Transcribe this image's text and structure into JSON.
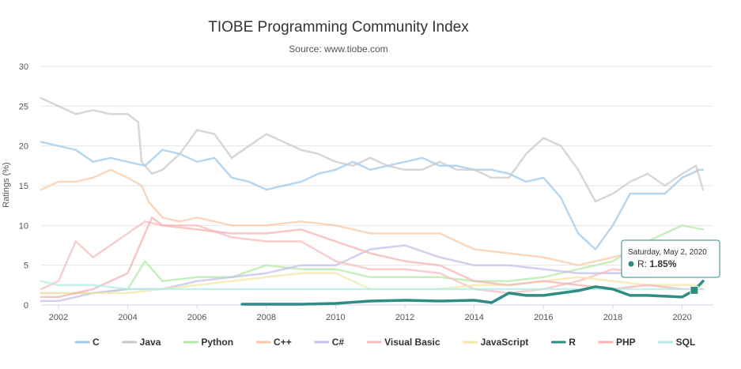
{
  "chart_data": {
    "type": "line",
    "title": "TIOBE Programming Community Index",
    "subtitle": "Source: www.tiobe.com",
    "ylabel": "Ratings (%)",
    "xlabel": "",
    "xlim": [
      2001.5,
      2020.9
    ],
    "ylim": [
      0,
      30
    ],
    "y_ticks": [
      "0",
      "5",
      "10",
      "15",
      "20",
      "25",
      "30"
    ],
    "x_ticks": [
      "2002",
      "2004",
      "2006",
      "2008",
      "2010",
      "2012",
      "2014",
      "2016",
      "2018",
      "2020"
    ],
    "grid": true,
    "legend_position": "bottom",
    "highlighted_series": "R",
    "series": [
      {
        "name": "C",
        "color": "#9ec8ec",
        "points": [
          [
            2001.5,
            20.5
          ],
          [
            2002,
            20
          ],
          [
            2002.5,
            19.5
          ],
          [
            2003,
            18
          ],
          [
            2003.5,
            18.5
          ],
          [
            2004,
            18
          ],
          [
            2004.5,
            17.5
          ],
          [
            2005,
            19.5
          ],
          [
            2005.5,
            19
          ],
          [
            2006,
            18
          ],
          [
            2006.5,
            18.5
          ],
          [
            2007,
            16
          ],
          [
            2007.5,
            15.5
          ],
          [
            2008,
            14.5
          ],
          [
            2008.5,
            15
          ],
          [
            2009,
            15.5
          ],
          [
            2009.5,
            16.5
          ],
          [
            2010,
            17
          ],
          [
            2010.5,
            18
          ],
          [
            2011,
            17
          ],
          [
            2011.5,
            17.5
          ],
          [
            2012,
            18
          ],
          [
            2012.5,
            18.5
          ],
          [
            2013,
            17.5
          ],
          [
            2013.5,
            17.5
          ],
          [
            2014,
            17
          ],
          [
            2014.5,
            17
          ],
          [
            2015,
            16.5
          ],
          [
            2015.5,
            15.5
          ],
          [
            2016,
            16
          ],
          [
            2016.5,
            13.5
          ],
          [
            2017,
            9
          ],
          [
            2017.5,
            7
          ],
          [
            2018,
            10
          ],
          [
            2018.5,
            14
          ],
          [
            2019,
            14
          ],
          [
            2019.5,
            14
          ],
          [
            2020,
            16
          ],
          [
            2020.5,
            17
          ],
          [
            2020.6,
            17
          ]
        ]
      },
      {
        "name": "Java",
        "color": "#c9c9c9",
        "points": [
          [
            2001.5,
            26
          ],
          [
            2002,
            25
          ],
          [
            2002.5,
            24
          ],
          [
            2003,
            24.5
          ],
          [
            2003.5,
            24
          ],
          [
            2004,
            24
          ],
          [
            2004.3,
            23
          ],
          [
            2004.4,
            18
          ],
          [
            2004.7,
            16.5
          ],
          [
            2005,
            17
          ],
          [
            2005.5,
            19
          ],
          [
            2006,
            22
          ],
          [
            2006.5,
            21.5
          ],
          [
            2007,
            18.5
          ],
          [
            2007.5,
            20
          ],
          [
            2008,
            21.5
          ],
          [
            2008.5,
            20.5
          ],
          [
            2009,
            19.5
          ],
          [
            2009.5,
            19
          ],
          [
            2010,
            18
          ],
          [
            2010.5,
            17.5
          ],
          [
            2011,
            18.5
          ],
          [
            2011.5,
            17.5
          ],
          [
            2012,
            17
          ],
          [
            2012.5,
            17
          ],
          [
            2013,
            18
          ],
          [
            2013.5,
            17
          ],
          [
            2014,
            17
          ],
          [
            2014.5,
            16
          ],
          [
            2015,
            16
          ],
          [
            2015.5,
            19
          ],
          [
            2016,
            21
          ],
          [
            2016.5,
            20
          ],
          [
            2017,
            17
          ],
          [
            2017.5,
            13
          ],
          [
            2018,
            14
          ],
          [
            2018.5,
            15.5
          ],
          [
            2019,
            16.5
          ],
          [
            2019.5,
            15
          ],
          [
            2020,
            16.5
          ],
          [
            2020.4,
            17.5
          ],
          [
            2020.6,
            14.5
          ]
        ]
      },
      {
        "name": "Python",
        "color": "#b4eaa8",
        "points": [
          [
            2001.5,
            1.5
          ],
          [
            2003,
            1.5
          ],
          [
            2004,
            2
          ],
          [
            2004.5,
            5.5
          ],
          [
            2005,
            3
          ],
          [
            2006,
            3.5
          ],
          [
            2007,
            3.5
          ],
          [
            2008,
            5
          ],
          [
            2009,
            4.5
          ],
          [
            2010,
            4.5
          ],
          [
            2011,
            3.5
          ],
          [
            2012,
            3.5
          ],
          [
            2013,
            3.5
          ],
          [
            2014,
            3
          ],
          [
            2015,
            3
          ],
          [
            2016,
            3.5
          ],
          [
            2017,
            4.5
          ],
          [
            2018,
            5.5
          ],
          [
            2019,
            8
          ],
          [
            2020,
            10
          ],
          [
            2020.6,
            9.5
          ]
        ]
      },
      {
        "name": "C++",
        "color": "#f9caa5",
        "points": [
          [
            2001.5,
            14.5
          ],
          [
            2002,
            15.5
          ],
          [
            2002.5,
            15.5
          ],
          [
            2003,
            16
          ],
          [
            2003.5,
            17
          ],
          [
            2004,
            16
          ],
          [
            2004.4,
            15
          ],
          [
            2004.6,
            13
          ],
          [
            2005,
            11
          ],
          [
            2005.5,
            10.5
          ],
          [
            2006,
            11
          ],
          [
            2007,
            10
          ],
          [
            2008,
            10
          ],
          [
            2009,
            10.5
          ],
          [
            2010,
            10
          ],
          [
            2011,
            9
          ],
          [
            2012,
            9
          ],
          [
            2013,
            9
          ],
          [
            2014,
            7
          ],
          [
            2015,
            6.5
          ],
          [
            2016,
            6
          ],
          [
            2017,
            5
          ],
          [
            2018,
            6
          ],
          [
            2019,
            7
          ],
          [
            2020,
            6.5
          ],
          [
            2020.6,
            6.5
          ]
        ]
      },
      {
        "name": "C#",
        "color": "#c2c2ea",
        "points": [
          [
            2001.5,
            0.5
          ],
          [
            2002,
            0.5
          ],
          [
            2003,
            1.5
          ],
          [
            2004,
            2
          ],
          [
            2005,
            2
          ],
          [
            2006,
            3
          ],
          [
            2007,
            3.5
          ],
          [
            2008,
            4
          ],
          [
            2009,
            5
          ],
          [
            2010,
            5
          ],
          [
            2011,
            7
          ],
          [
            2012,
            7.5
          ],
          [
            2013,
            6
          ],
          [
            2014,
            5
          ],
          [
            2015,
            5
          ],
          [
            2016,
            4.5
          ],
          [
            2017,
            4
          ],
          [
            2018,
            4
          ],
          [
            2019,
            4
          ],
          [
            2020,
            5
          ],
          [
            2020.6,
            5
          ]
        ]
      },
      {
        "name": "Visual Basic",
        "color": "#f7bcbc",
        "points": [
          [
            2001.5,
            2
          ],
          [
            2002,
            3
          ],
          [
            2002.5,
            8
          ],
          [
            2003,
            6
          ],
          [
            2003.5,
            7.5
          ],
          [
            2004,
            9
          ],
          [
            2004.5,
            10.5
          ],
          [
            2005,
            10
          ],
          [
            2006,
            10
          ],
          [
            2007,
            8.5
          ],
          [
            2008,
            8
          ],
          [
            2009,
            8
          ],
          [
            2010,
            5.5
          ],
          [
            2011,
            4.5
          ],
          [
            2012,
            4.5
          ],
          [
            2013,
            4
          ],
          [
            2014,
            2
          ],
          [
            2015,
            1.5
          ],
          [
            2016,
            2
          ],
          [
            2017,
            3
          ],
          [
            2018,
            4.5
          ],
          [
            2019,
            4
          ],
          [
            2020,
            5
          ],
          [
            2020.6,
            5
          ]
        ]
      },
      {
        "name": "JavaScript",
        "color": "#f3e6a8",
        "points": [
          [
            2001.5,
            1.5
          ],
          [
            2003,
            1.5
          ],
          [
            2004,
            1.5
          ],
          [
            2005,
            2
          ],
          [
            2006,
            2.5
          ],
          [
            2007,
            3
          ],
          [
            2008,
            3.5
          ],
          [
            2009,
            4
          ],
          [
            2010,
            4
          ],
          [
            2011,
            2
          ],
          [
            2012,
            2
          ],
          [
            2013,
            2
          ],
          [
            2014,
            2.5
          ],
          [
            2015,
            2.5
          ],
          [
            2016,
            3
          ],
          [
            2017,
            3.5
          ],
          [
            2018,
            3
          ],
          [
            2019,
            2.5
          ],
          [
            2020,
            2.5
          ],
          [
            2020.6,
            2.5
          ]
        ]
      },
      {
        "name": "R",
        "color": "#2f8c84",
        "points": [
          [
            2007.3,
            0.1
          ],
          [
            2008,
            0.1
          ],
          [
            2009,
            0.1
          ],
          [
            2010,
            0.2
          ],
          [
            2011,
            0.5
          ],
          [
            2012,
            0.6
          ],
          [
            2013,
            0.5
          ],
          [
            2014,
            0.6
          ],
          [
            2014.5,
            0.3
          ],
          [
            2015,
            1.5
          ],
          [
            2015.5,
            1.2
          ],
          [
            2016,
            1.2
          ],
          [
            2016.5,
            1.5
          ],
          [
            2017,
            1.8
          ],
          [
            2017.5,
            2.3
          ],
          [
            2018,
            2
          ],
          [
            2018.5,
            1.2
          ],
          [
            2019,
            1.2
          ],
          [
            2019.5,
            1.1
          ],
          [
            2020,
            1
          ],
          [
            2020.35,
            1.85
          ],
          [
            2020.6,
            3
          ]
        ]
      },
      {
        "name": "PHP",
        "color": "#f5b3b3",
        "points": [
          [
            2001.5,
            1
          ],
          [
            2002,
            1
          ],
          [
            2003,
            2
          ],
          [
            2004,
            4
          ],
          [
            2004.7,
            11
          ],
          [
            2005,
            10
          ],
          [
            2006,
            9.5
          ],
          [
            2007,
            9
          ],
          [
            2008,
            9
          ],
          [
            2009,
            9.5
          ],
          [
            2010,
            8
          ],
          [
            2011,
            6.5
          ],
          [
            2012,
            5.5
          ],
          [
            2013,
            5
          ],
          [
            2014,
            3
          ],
          [
            2015,
            2.5
          ],
          [
            2016,
            3
          ],
          [
            2017,
            2.5
          ],
          [
            2018,
            2
          ],
          [
            2019,
            2.5
          ],
          [
            2020,
            2
          ],
          [
            2020.6,
            2
          ]
        ]
      },
      {
        "name": "SQL",
        "color": "#b3ebe6",
        "points": [
          [
            2001.5,
            3
          ],
          [
            2002,
            2.5
          ],
          [
            2003,
            2.5
          ],
          [
            2004,
            2
          ],
          [
            2005,
            2
          ],
          [
            2006,
            2
          ],
          [
            2007,
            2
          ],
          [
            2008,
            2
          ],
          [
            2009,
            2
          ],
          [
            2010,
            2
          ],
          [
            2011,
            2
          ],
          [
            2012,
            2
          ],
          [
            2013,
            2
          ],
          [
            2014,
            2
          ],
          [
            2015,
            2
          ],
          [
            2016,
            2
          ],
          [
            2017,
            2
          ],
          [
            2018,
            2
          ],
          [
            2019,
            2
          ],
          [
            2020,
            2
          ],
          [
            2020.6,
            2
          ]
        ]
      }
    ],
    "tooltip": {
      "date": "Saturday, May 2, 2020",
      "series_label": "R:",
      "value_text": "1.85%",
      "x": 2020.35,
      "y": 1.85
    }
  }
}
